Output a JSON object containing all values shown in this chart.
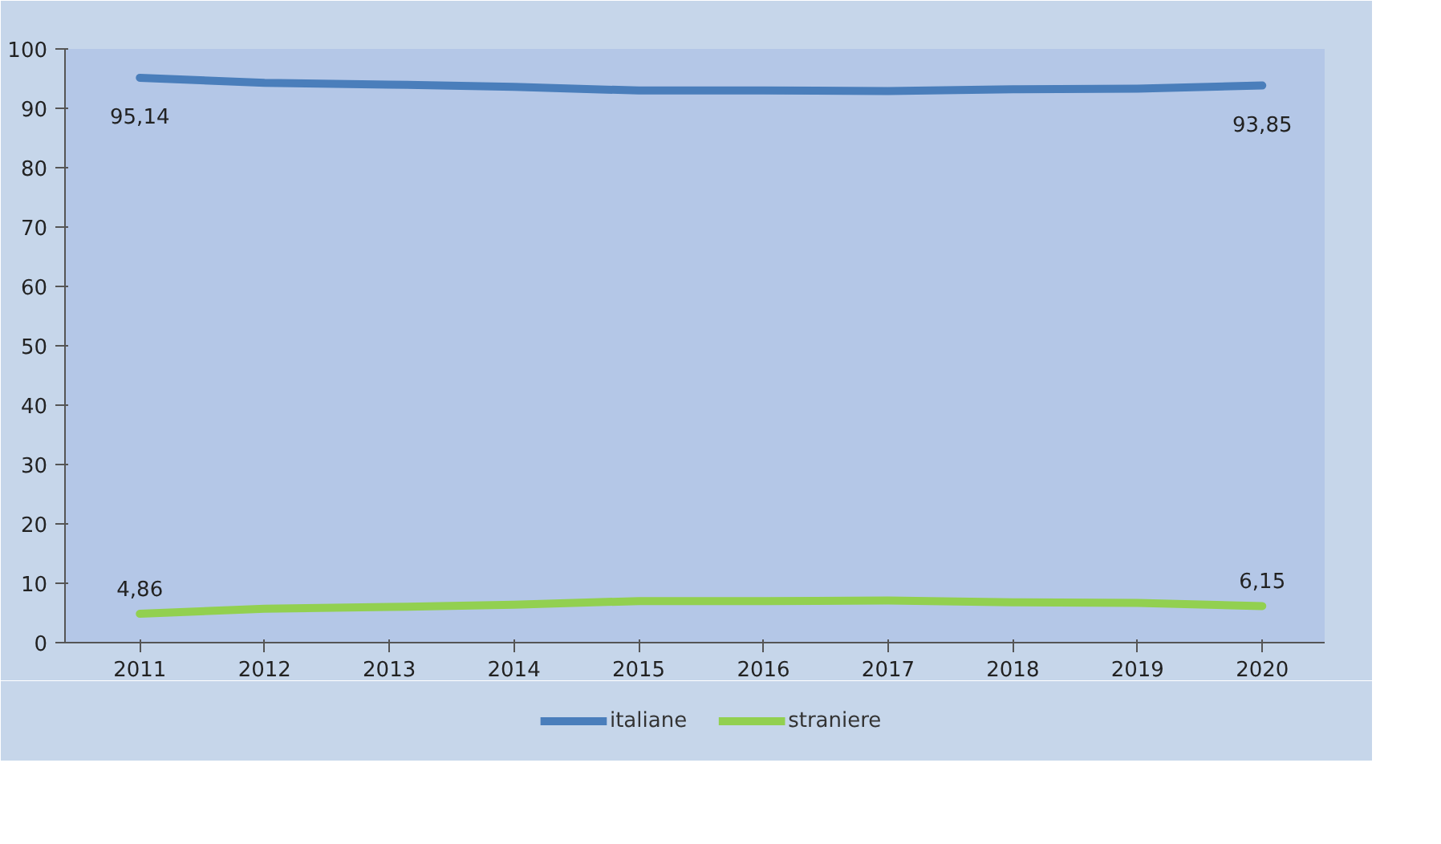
{
  "chart_data": {
    "type": "line",
    "categories": [
      "2011",
      "2012",
      "2013",
      "2014",
      "2015",
      "2016",
      "2017",
      "2018",
      "2019",
      "2020"
    ],
    "series": [
      {
        "name": "italiane",
        "color": "#4a7ebb",
        "values": [
          95.14,
          94.3,
          94.0,
          93.6,
          93.0,
          93.0,
          92.9,
          93.2,
          93.3,
          93.85
        ],
        "value_labels": [
          "95,14",
          null,
          null,
          null,
          null,
          null,
          null,
          null,
          null,
          "93,85"
        ]
      },
      {
        "name": "straniere",
        "color": "#92d050",
        "values": [
          4.86,
          5.7,
          6.0,
          6.4,
          7.0,
          7.0,
          7.1,
          6.8,
          6.7,
          6.15
        ],
        "value_labels": [
          "4,86",
          null,
          null,
          null,
          null,
          null,
          null,
          null,
          null,
          "6,15"
        ]
      }
    ],
    "ylim": [
      0,
      100
    ],
    "yticks": [
      0,
      10,
      20,
      30,
      40,
      50,
      60,
      70,
      80,
      90,
      100
    ],
    "grid": false,
    "legend": "bottom",
    "marker": "none",
    "line_style": "solid"
  }
}
